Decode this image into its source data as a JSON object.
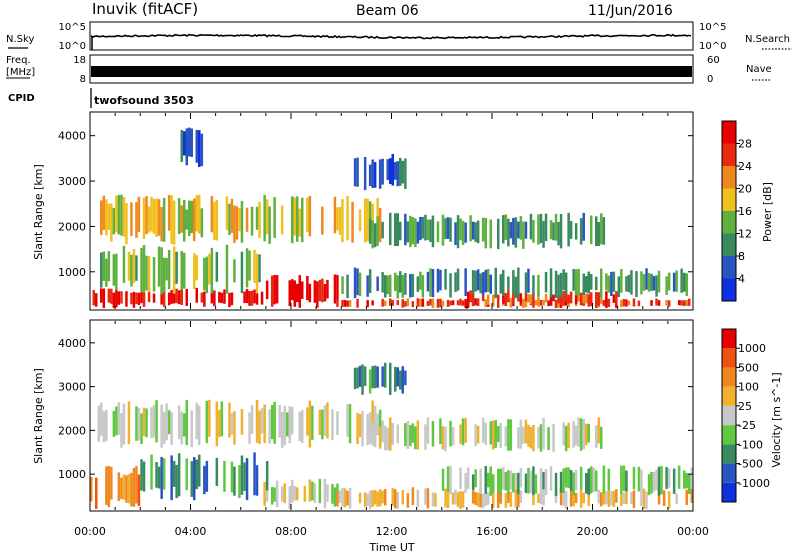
{
  "header": {
    "radar": "Inuvik (fitACF)",
    "beam": "Beam 06",
    "date": "11/Jun/2016"
  },
  "strips": {
    "nsky_label": "N.Sky",
    "nsky_ticks": [
      "10^5",
      "10^0"
    ],
    "nsearch_label": "N.Search",
    "nsearch_ticks": [
      "10^5",
      "10^0"
    ],
    "freq_label": "Freq.",
    "freq_unit": "[MHz]",
    "freq_ticks": [
      "18",
      "8"
    ],
    "nave_label": "Nave",
    "nave_ticks": [
      "60",
      "0"
    ],
    "cpid_label": "CPID",
    "cpid_value": "twofsound 3503"
  },
  "chart_data": [
    {
      "type": "heatmap",
      "panel": "power",
      "ylabel": "Slant Range [km]",
      "yticks": [
        1000,
        2000,
        3000,
        4000
      ],
      "ylim": [
        180,
        4500
      ],
      "xlim": [
        "00:00",
        "24:00"
      ],
      "colorbar_label": "Power [dB]",
      "colorbar_ticks": [
        4,
        8,
        12,
        16,
        20,
        24,
        28
      ],
      "colorbar_colors": [
        "#1030e0",
        "#2a55c0",
        "#3a8a60",
        "#60b040",
        "#f0c020",
        "#f08820",
        "#e82a10",
        "#e80000"
      ],
      "regions": [
        {
          "t0": 0.0,
          "t1": 7.0,
          "r0": 200,
          "r1": 650,
          "level": 7
        },
        {
          "t0": 6.8,
          "t1": 9.8,
          "r0": 200,
          "r1": 950,
          "level": 7
        },
        {
          "t0": 9.8,
          "t1": 24.0,
          "r0": 200,
          "r1": 420,
          "level": 6
        },
        {
          "t0": 15.0,
          "t1": 21.0,
          "r0": 250,
          "r1": 600,
          "level": 6
        },
        {
          "t0": 0.3,
          "t1": 11.5,
          "r0": 1600,
          "r1": 2700,
          "level": 4
        },
        {
          "t0": 11.0,
          "t1": 20.5,
          "r0": 1500,
          "r1": 2300,
          "level": 2
        },
        {
          "t0": 0.3,
          "t1": 7.0,
          "r0": 500,
          "r1": 1600,
          "level": 3
        },
        {
          "t0": 9.8,
          "t1": 24.0,
          "r0": 400,
          "r1": 1100,
          "level": 2
        },
        {
          "t0": 10.5,
          "t1": 12.5,
          "r0": 2800,
          "r1": 3600,
          "level": 1
        },
        {
          "t0": 3.2,
          "t1": 4.5,
          "r0": 3300,
          "r1": 4200,
          "level": 1
        }
      ]
    },
    {
      "type": "heatmap",
      "panel": "velocity",
      "ylabel": "Slant Range [km]",
      "yticks": [
        1000,
        2000,
        3000,
        4000
      ],
      "ylim": [
        180,
        4500
      ],
      "xlabel": "Time UT",
      "xticks": [
        "00:00",
        "04:00",
        "08:00",
        "12:00",
        "16:00",
        "20:00",
        "00:00"
      ],
      "xlim": [
        "00:00",
        "24:00"
      ],
      "colorbar_label": "Velocity [m s^-1]",
      "colorbar_ticks": [
        1000,
        500,
        100,
        25,
        -25,
        -100,
        -500,
        -1000
      ],
      "colorbar_colors": [
        "#1030e0",
        "#2a55c0",
        "#3a8a60",
        "#60c840",
        "#c8c8c8",
        "#f0b030",
        "#f08820",
        "#f05010",
        "#e80000"
      ],
      "regions": [
        {
          "t0": 0.0,
          "t1": 2.0,
          "r0": 200,
          "r1": 1200,
          "level": 6
        },
        {
          "t0": 6.8,
          "t1": 9.8,
          "r0": 200,
          "r1": 900,
          "level": 4
        },
        {
          "t0": 9.8,
          "t1": 24.0,
          "r0": 200,
          "r1": 700,
          "level": 5
        },
        {
          "t0": 0.3,
          "t1": 11.5,
          "r0": 1600,
          "r1": 2700,
          "level": 4
        },
        {
          "t0": 11.0,
          "t1": 20.5,
          "r0": 1500,
          "r1": 2300,
          "level": 4
        },
        {
          "t0": 2.0,
          "t1": 7.0,
          "r0": 400,
          "r1": 1500,
          "level": 2
        },
        {
          "t0": 14.0,
          "t1": 24.0,
          "r0": 500,
          "r1": 1200,
          "level": 3
        },
        {
          "t0": 10.5,
          "t1": 12.5,
          "r0": 2800,
          "r1": 3600,
          "level": 2
        }
      ]
    }
  ]
}
